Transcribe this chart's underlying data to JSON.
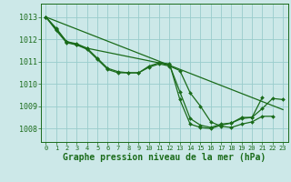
{
  "background_color": "#cce8e8",
  "grid_color": "#99cccc",
  "line_color": "#1a6b1a",
  "title": "Graphe pression niveau de la mer (hPa)",
  "xlim": [
    -0.5,
    23.5
  ],
  "ylim": [
    1007.4,
    1013.6
  ],
  "yticks": [
    1008,
    1009,
    1010,
    1011,
    1012,
    1013
  ],
  "xticks": [
    0,
    1,
    2,
    3,
    4,
    5,
    6,
    7,
    8,
    9,
    10,
    11,
    12,
    13,
    14,
    15,
    16,
    17,
    18,
    19,
    20,
    21,
    22,
    23
  ],
  "line1": [
    1013.0,
    1012.4,
    1011.85,
    1011.75,
    1011.55,
    1011.1,
    1010.65,
    1010.5,
    1010.5,
    1010.5,
    1010.75,
    1010.9,
    1010.8,
    1010.6,
    1009.6,
    1009.0,
    1008.3,
    1008.1,
    1008.05,
    1008.2,
    1008.3,
    1008.55,
    1008.55,
    null
  ],
  "line2": [
    1013.0,
    1012.5,
    1011.9,
    1011.8,
    1011.6,
    1011.15,
    1010.7,
    1010.55,
    1010.5,
    1010.5,
    1010.8,
    1010.95,
    1010.9,
    1009.3,
    1008.2,
    1008.05,
    1008.0,
    1008.15,
    1008.25,
    1008.5,
    1008.5,
    1009.4,
    null,
    null
  ],
  "line3_x": [
    0,
    1,
    2,
    3,
    4,
    12,
    13,
    14,
    15,
    16,
    17,
    18,
    19,
    20,
    21,
    22,
    23
  ],
  "line3_y": [
    1013.0,
    1012.45,
    1011.9,
    1011.75,
    1011.6,
    1010.85,
    1009.65,
    1008.45,
    1008.15,
    1008.05,
    1008.2,
    1008.25,
    1008.45,
    1008.5,
    1008.9,
    1009.35,
    1009.3
  ],
  "line4_x": [
    0,
    23
  ],
  "line4_y": [
    1013.0,
    1008.85
  ]
}
